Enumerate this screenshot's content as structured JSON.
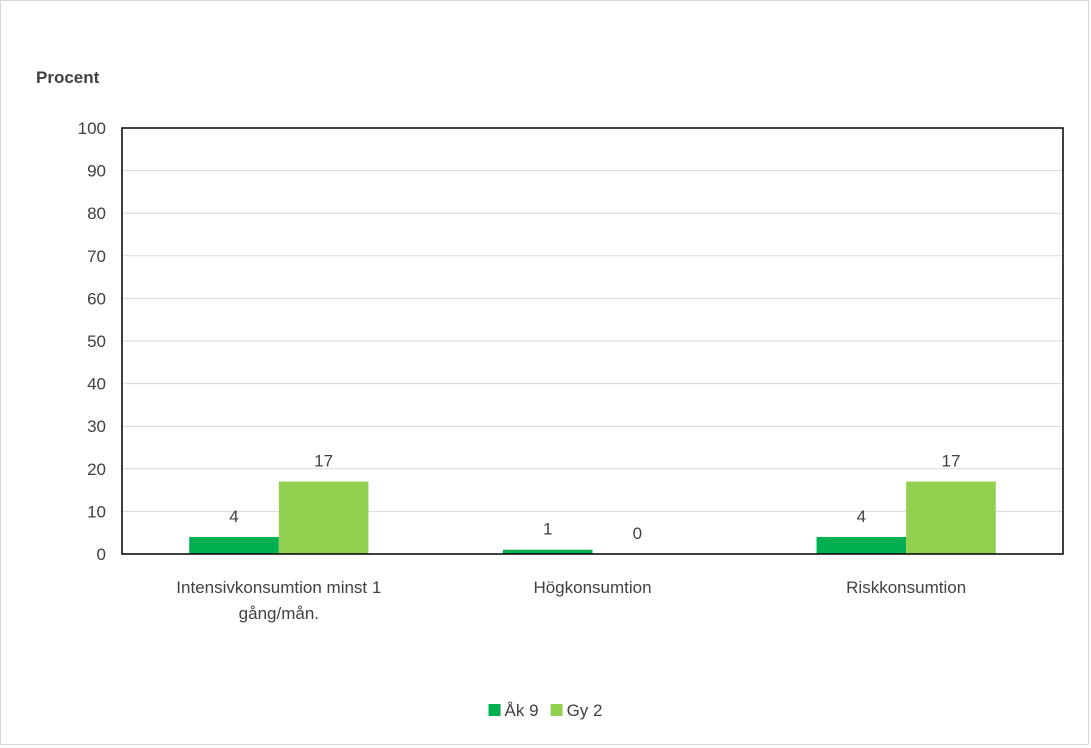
{
  "chart_data": {
    "type": "bar",
    "title": "",
    "xlabel": "",
    "ylabel": "Procent",
    "ylim": [
      0,
      100
    ],
    "yticks": [
      0,
      10,
      20,
      30,
      40,
      50,
      60,
      70,
      80,
      90,
      100
    ],
    "categories": [
      [
        "Intensivkonsumtion minst 1",
        "gång/mån."
      ],
      [
        "Högkonsumtion"
      ],
      [
        "Riskkonsumtion"
      ]
    ],
    "series": [
      {
        "name": "Åk 9",
        "color": "#00b050",
        "values": [
          4,
          1,
          4
        ]
      },
      {
        "name": "Gy 2",
        "color": "#92d050",
        "values": [
          17,
          0,
          17
        ]
      }
    ],
    "grid": true,
    "legend_position": "bottom"
  }
}
